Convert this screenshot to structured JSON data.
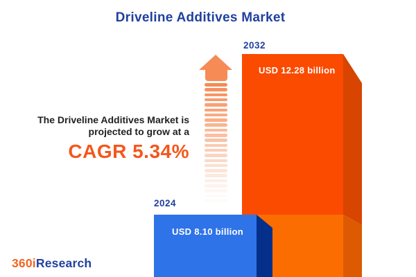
{
  "title": "Driveline Additives Market",
  "annotation": {
    "line1": "The Driveline Additives Market is",
    "line2": "projected to grow at a",
    "cagr_label": "CAGR 5.34%"
  },
  "bars": [
    {
      "year": "2024",
      "value_label": "USD 8.10 billion",
      "front_color": "#2F73E8",
      "side_color": "#04308C"
    },
    {
      "year": "2032",
      "value_label": "USD 12.28 billion",
      "front_color": "#FA4B00",
      "front_color_light": "#FB6D00",
      "side_color": "#D84501",
      "side_color_light": "#DE5A02"
    }
  ],
  "logo": {
    "part1": "360i",
    "part2": "Research"
  },
  "colors": {
    "background": "#FFFFFF",
    "title_blue": "#21409F",
    "text_dark": "#1F2023",
    "accent_orange": "#F4571B",
    "arrow_orange": "#F68B55",
    "logo_orange": "#F26522",
    "logo_blue": "#21409F"
  },
  "chart_data": {
    "type": "bar",
    "title": "Driveline Additives Market",
    "categories": [
      "2024",
      "2032"
    ],
    "values": [
      8.1,
      12.28
    ],
    "value_labels": [
      "USD 8.10 billion",
      "USD 12.28 billion"
    ],
    "unit": "USD billion",
    "cagr_percent": 5.34,
    "orientation": "vertical",
    "series_colors": [
      "#2F73E8",
      "#FA4B00"
    ],
    "legend": false,
    "grid": false,
    "annotation": "The Driveline Additives Market is projected to grow at a CAGR 5.34%"
  }
}
